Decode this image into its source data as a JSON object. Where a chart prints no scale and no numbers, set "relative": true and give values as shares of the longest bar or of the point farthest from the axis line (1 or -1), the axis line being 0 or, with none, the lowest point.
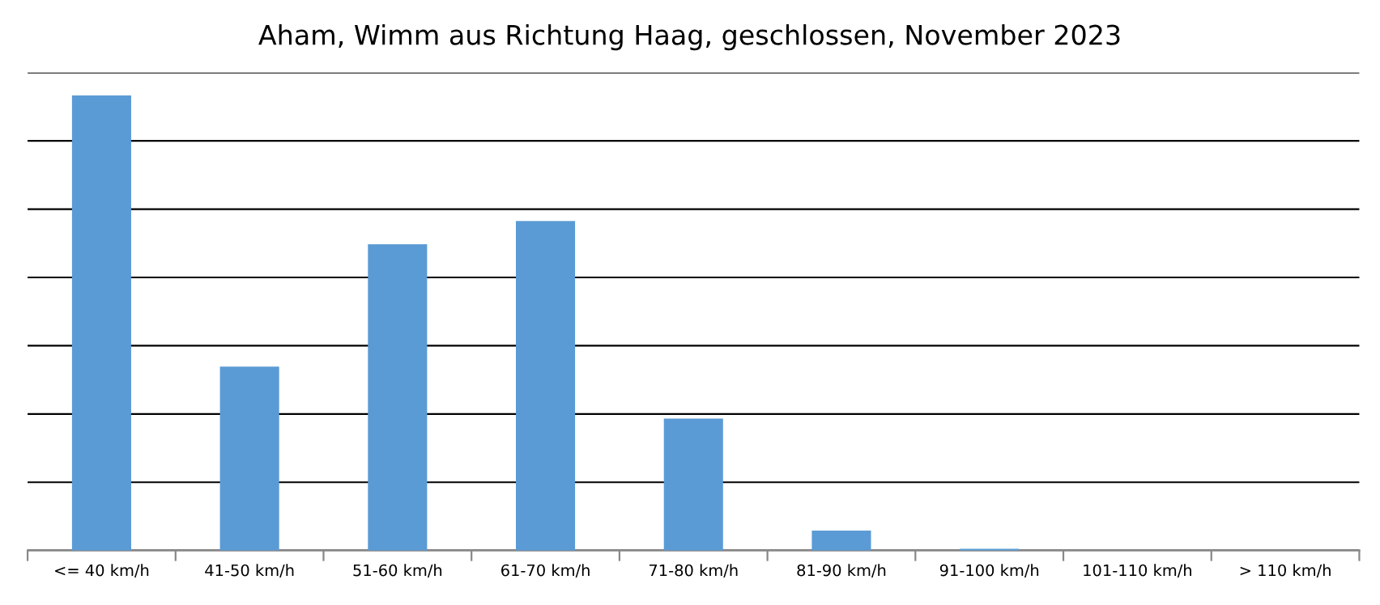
{
  "chart_data": {
    "type": "bar",
    "title": "Aham, Wimm aus Richtung Haag, geschlossen, November 2023",
    "categories": [
      "<= 40 km/h",
      "41-50 km/h",
      "51-60 km/h",
      "61-70 km/h",
      "71-80 km/h",
      "81-90 km/h",
      "91-100 km/h",
      "101-110 km/h",
      "> 110 km/h"
    ],
    "values": [
      1,
      0.404,
      0.673,
      0.724,
      0.29,
      0.044,
      0.004,
      0,
      0
    ],
    "color": "#5b9bd5",
    "relative": true,
    "grid": "y"
  }
}
